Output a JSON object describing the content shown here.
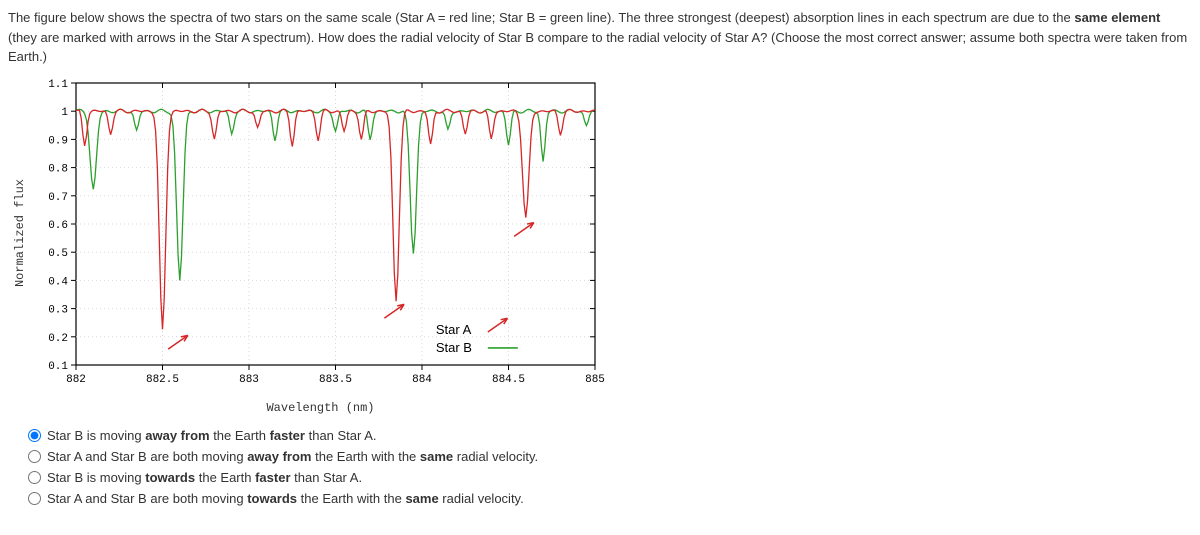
{
  "question": {
    "p": [
      "The figure below shows the spectra of two stars on the same scale (Star A = red line; Star B = green line). The three strongest (deepest) absorption lines in each spectrum are due to the ",
      "same element",
      " (they are marked with arrows in the Star A spectrum). How does the radial velocity of Star B compare to the radial velocity of Star A? (Choose the most correct answer; assume both spectra were taken from Earth.)"
    ]
  },
  "chart": {
    "type": "line",
    "xlabel": "Wavelength (nm)",
    "ylabel": "Normalized flux",
    "xlim": [
      882,
      885
    ],
    "ylim": [
      0.1,
      1.1
    ],
    "xticks": [
      882,
      882.5,
      883,
      883.5,
      884,
      884.5,
      885
    ],
    "yticks": [
      0.1,
      0.2,
      0.3,
      0.4,
      0.5,
      0.6,
      0.7,
      0.8,
      0.9,
      1,
      1.1
    ],
    "grid_color": "#d8d8d8",
    "background_color": "#ffffff",
    "axis_color": "#000000",
    "series": {
      "starA": {
        "label": "Star A",
        "color": "#d62728"
      },
      "starB": {
        "label": "Star B",
        "color": "#2ca02c"
      }
    },
    "starA_deep_lines": [
      {
        "wl": 882.5,
        "depth": 0.22
      },
      {
        "wl": 883.85,
        "depth": 0.33
      },
      {
        "wl": 884.6,
        "depth": 0.62
      }
    ],
    "starA_small_lines": [
      {
        "wl": 882.05,
        "depth": 0.88
      },
      {
        "wl": 882.2,
        "depth": 0.92
      },
      {
        "wl": 882.8,
        "depth": 0.9
      },
      {
        "wl": 883.05,
        "depth": 0.94
      },
      {
        "wl": 883.25,
        "depth": 0.88
      },
      {
        "wl": 883.4,
        "depth": 0.9
      },
      {
        "wl": 883.55,
        "depth": 0.93
      },
      {
        "wl": 883.65,
        "depth": 0.9
      },
      {
        "wl": 884.05,
        "depth": 0.88
      },
      {
        "wl": 884.25,
        "depth": 0.92
      },
      {
        "wl": 884.4,
        "depth": 0.9
      },
      {
        "wl": 884.8,
        "depth": 0.92
      }
    ],
    "starB_deep_lines": [
      {
        "wl": 882.1,
        "depth": 0.72
      },
      {
        "wl": 882.6,
        "depth": 0.4
      },
      {
        "wl": 883.95,
        "depth": 0.5
      }
    ],
    "starB_small_lines": [
      {
        "wl": 882.35,
        "depth": 0.93
      },
      {
        "wl": 882.9,
        "depth": 0.92
      },
      {
        "wl": 883.15,
        "depth": 0.9
      },
      {
        "wl": 883.5,
        "depth": 0.93
      },
      {
        "wl": 883.7,
        "depth": 0.9
      },
      {
        "wl": 884.15,
        "depth": 0.93
      },
      {
        "wl": 884.5,
        "depth": 0.88
      },
      {
        "wl": 884.7,
        "depth": 0.82
      },
      {
        "wl": 884.95,
        "depth": 0.95
      }
    ],
    "arrows_at": [
      882.55,
      883.8,
      884.55
    ],
    "arrow_color": "#d62728",
    "legend_arrow_color_b": "#2ca02c"
  },
  "options": [
    {
      "html": "Star B is moving <b>away from</b> the Earth <b>faster</b> than Star A.",
      "checked": true
    },
    {
      "html": "Star A and Star B are both moving <b>away from</b> the Earth with the <b>same</b> radial velocity.",
      "checked": false
    },
    {
      "html": "Star B is moving <b>towards</b> the Earth <b>faster</b> than Star A.",
      "checked": false
    },
    {
      "html": "Star A and Star B are both moving <b>towards</b> the Earth with the <b>same</b> radial velocity.",
      "checked": false
    }
  ]
}
